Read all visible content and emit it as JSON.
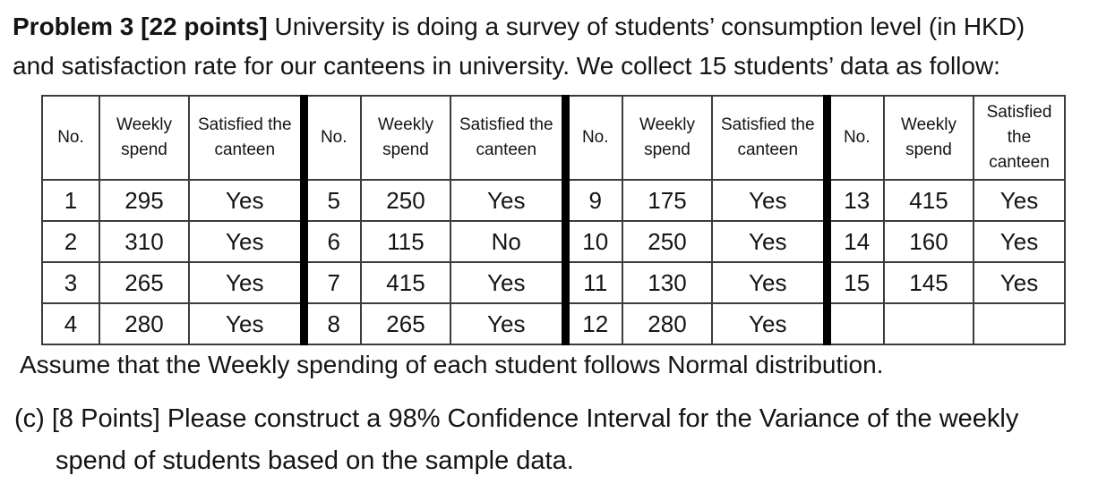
{
  "intro": {
    "bold_prefix": "Problem 3 [22 points]",
    "line1_rest": " University is doing a survey of students’ consumption level (in HKD)",
    "line2": "and satisfaction rate for our canteens in university. We collect 15 students’ data as follow:"
  },
  "table": {
    "col_headers": {
      "no": "No.",
      "weekly_spend": "Weekly spend",
      "satisfied": "Satisfied the canteen"
    },
    "cells": [
      [
        [
          "1",
          "295",
          "Yes"
        ],
        [
          "5",
          "250",
          "Yes"
        ],
        [
          "9",
          "175",
          "Yes"
        ],
        [
          "13",
          "415",
          "Yes"
        ]
      ],
      [
        [
          "2",
          "310",
          "Yes"
        ],
        [
          "6",
          "115",
          "No"
        ],
        [
          "10",
          "250",
          "Yes"
        ],
        [
          "14",
          "160",
          "Yes"
        ]
      ],
      [
        [
          "3",
          "265",
          "Yes"
        ],
        [
          "7",
          "415",
          "Yes"
        ],
        [
          "11",
          "130",
          "Yes"
        ],
        [
          "15",
          "145",
          "Yes"
        ]
      ],
      [
        [
          "4",
          "280",
          "Yes"
        ],
        [
          "8",
          "265",
          "Yes"
        ],
        [
          "12",
          "280",
          "Yes"
        ],
        [
          "",
          "",
          ""
        ]
      ]
    ]
  },
  "note": "Assume that the Weekly spending of each student follows Normal distribution.",
  "part_c": {
    "line1": "(c) [8 Points] Please construct a 98% Confidence Interval for the Variance of the weekly",
    "line2": "spend of students based on the sample data."
  },
  "colors": {
    "background": "#ffffff",
    "text": "#141414",
    "border_thin": "#3c3c3c",
    "border_thick": "#000000"
  }
}
